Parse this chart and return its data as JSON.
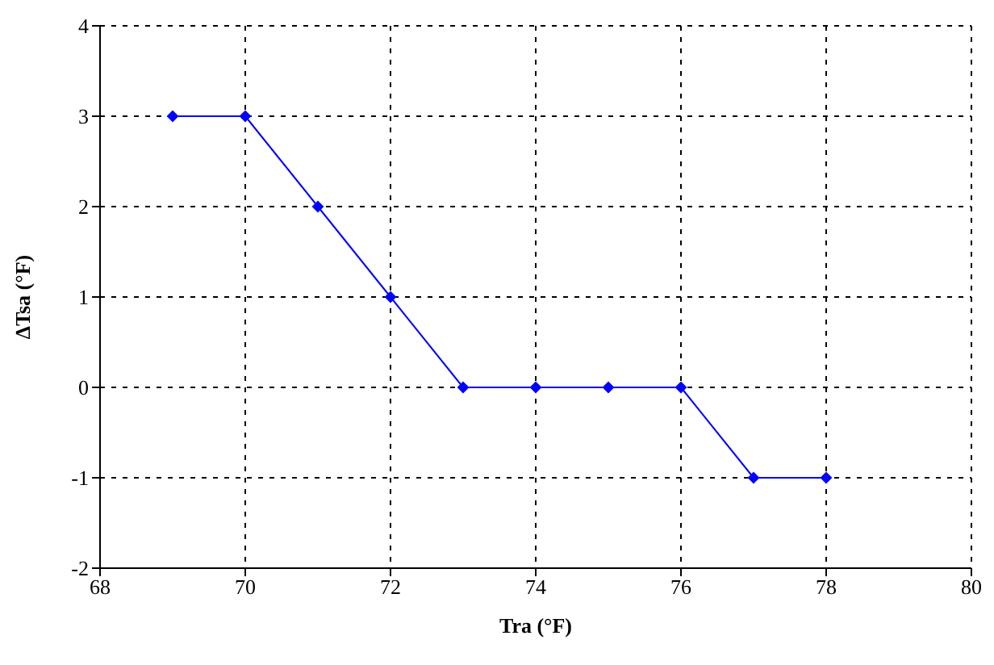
{
  "chart_data": {
    "type": "line",
    "xlabel": "Tra (°F)",
    "ylabel": "ΔTsa (°F)",
    "x": [
      69,
      70,
      71,
      72,
      73,
      74,
      75,
      76,
      77,
      78
    ],
    "series": [
      {
        "color": "#0000ff",
        "values": [
          3,
          3,
          2,
          1,
          0,
          0,
          0,
          0,
          -1,
          -1
        ]
      }
    ],
    "xlim": [
      68,
      80
    ],
    "xticks": [
      68,
      70,
      72,
      74,
      76,
      78,
      80
    ],
    "ylim": [
      -2,
      4
    ],
    "yticks": [
      -2,
      -1,
      0,
      1,
      2,
      3,
      4
    ],
    "grid": true,
    "marker": "diamond",
    "line_style": "solid"
  }
}
